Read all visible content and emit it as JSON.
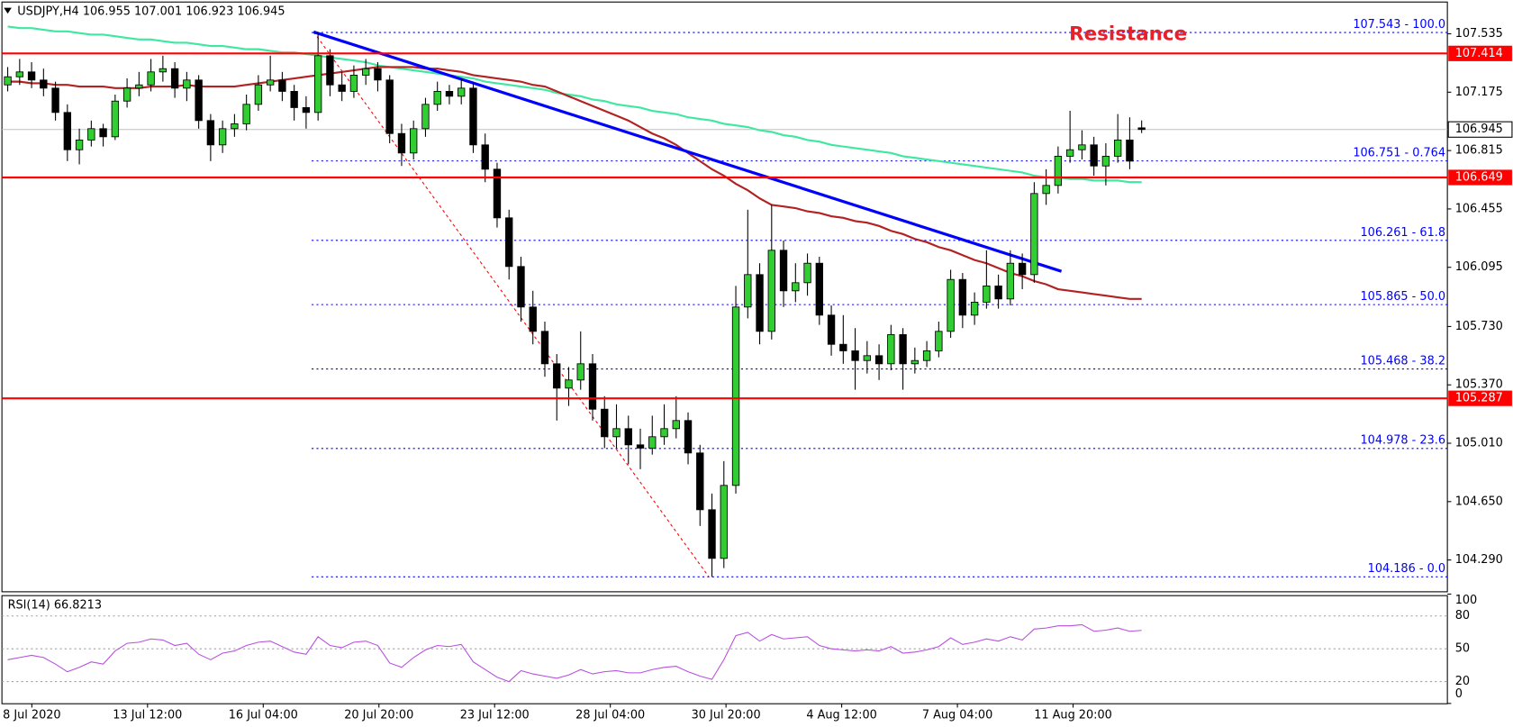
{
  "chart_data": {
    "type": "candlestick",
    "title": "USDJPY,H4  106.955 107.001 106.923 106.945",
    "annotation": "Resistance",
    "x_labels": [
      "8 Jul 2020",
      "13 Jul 12:00",
      "16 Jul 04:00",
      "20 Jul 20:00",
      "23 Jul 12:00",
      "28 Jul 04:00",
      "30 Jul 20:00",
      "4 Aug 12:00",
      "7 Aug 04:00",
      "11 Aug 20:00"
    ],
    "ylim": [
      104.094,
      107.731
    ],
    "yticks": [
      107.535,
      107.175,
      106.815,
      106.455,
      106.095,
      {
        "value": 105.73,
        "label": "105.730"
      },
      {
        "value": 105.37,
        "label": "105.370"
      },
      {
        "value": 105.01,
        "label": "105.010"
      },
      {
        "value": 104.65,
        "label": "104.650"
      },
      {
        "value": 104.29,
        "label": "104.290"
      }
    ],
    "up_color": "#32cd32",
    "down_color": "#000000",
    "candles": [
      [
        107.22,
        107.33,
        107.18,
        107.27
      ],
      [
        107.27,
        107.38,
        107.22,
        107.3
      ],
      [
        107.3,
        107.36,
        107.2,
        107.25
      ],
      [
        107.25,
        107.32,
        107.15,
        107.2
      ],
      [
        107.2,
        107.24,
        107.0,
        107.05
      ],
      [
        107.05,
        107.1,
        106.75,
        106.82
      ],
      [
        106.82,
        106.95,
        106.73,
        106.88
      ],
      [
        106.88,
        107.0,
        106.84,
        106.95
      ],
      [
        106.95,
        106.98,
        106.84,
        106.9
      ],
      [
        106.9,
        107.16,
        106.88,
        107.12
      ],
      [
        107.12,
        107.26,
        107.08,
        107.2
      ],
      [
        107.2,
        107.3,
        107.15,
        107.22
      ],
      [
        107.22,
        107.38,
        107.18,
        107.3
      ],
      [
        107.3,
        107.4,
        107.24,
        107.32
      ],
      [
        107.32,
        107.36,
        107.14,
        107.2
      ],
      [
        107.2,
        107.3,
        107.12,
        107.25
      ],
      [
        107.25,
        107.28,
        106.95,
        107.0
      ],
      [
        107.0,
        107.04,
        106.75,
        106.85
      ],
      [
        106.85,
        107.0,
        106.8,
        106.95
      ],
      [
        106.95,
        107.04,
        106.9,
        106.98
      ],
      [
        106.98,
        107.16,
        106.94,
        107.1
      ],
      [
        107.1,
        107.28,
        107.06,
        107.22
      ],
      [
        107.22,
        107.4,
        107.18,
        107.25
      ],
      [
        107.25,
        107.3,
        107.12,
        107.18
      ],
      [
        107.18,
        107.22,
        107.0,
        107.08
      ],
      [
        107.08,
        107.15,
        106.95,
        107.05
      ],
      [
        107.05,
        107.543,
        107.0,
        107.4
      ],
      [
        107.4,
        107.44,
        107.15,
        107.22
      ],
      [
        107.22,
        107.3,
        107.12,
        107.18
      ],
      [
        107.18,
        107.34,
        107.14,
        107.28
      ],
      [
        107.28,
        107.38,
        107.22,
        107.32
      ],
      [
        107.32,
        107.36,
        107.18,
        107.25
      ],
      [
        107.25,
        107.28,
        106.86,
        106.92
      ],
      [
        106.92,
        106.98,
        106.72,
        106.8
      ],
      [
        106.8,
        107.0,
        106.76,
        106.95
      ],
      [
        106.95,
        107.14,
        106.9,
        107.1
      ],
      [
        107.1,
        107.24,
        107.06,
        107.18
      ],
      [
        107.18,
        107.22,
        107.1,
        107.15
      ],
      [
        107.15,
        107.26,
        107.1,
        107.2
      ],
      [
        107.2,
        107.24,
        106.8,
        106.85
      ],
      [
        106.85,
        106.92,
        106.62,
        106.7
      ],
      [
        106.7,
        106.74,
        106.34,
        106.4
      ],
      [
        106.4,
        106.45,
        106.02,
        106.1
      ],
      [
        106.1,
        106.16,
        105.76,
        105.85
      ],
      [
        105.85,
        105.95,
        105.62,
        105.7
      ],
      [
        105.7,
        105.76,
        105.42,
        105.5
      ],
      [
        105.5,
        105.56,
        105.15,
        105.35
      ],
      [
        105.35,
        105.48,
        105.24,
        105.4
      ],
      [
        105.4,
        105.7,
        105.34,
        105.5
      ],
      [
        105.5,
        105.56,
        105.15,
        105.22
      ],
      [
        105.22,
        105.3,
        104.98,
        105.05
      ],
      [
        105.05,
        105.25,
        104.98,
        105.1
      ],
      [
        105.1,
        105.18,
        104.88,
        105.0
      ],
      [
        105.0,
        105.1,
        104.85,
        104.98
      ],
      [
        104.98,
        105.18,
        104.94,
        105.05
      ],
      [
        105.05,
        105.25,
        105.0,
        105.1
      ],
      [
        105.1,
        105.3,
        105.04,
        105.15
      ],
      [
        105.15,
        105.2,
        104.88,
        104.95
      ],
      [
        104.95,
        105.0,
        104.5,
        104.6
      ],
      [
        104.6,
        104.7,
        104.186,
        104.3
      ],
      [
        104.3,
        104.9,
        104.24,
        104.75
      ],
      [
        104.75,
        105.98,
        104.7,
        105.85
      ],
      [
        105.85,
        106.45,
        105.78,
        106.05
      ],
      [
        106.05,
        106.12,
        105.62,
        105.7
      ],
      [
        105.7,
        106.48,
        105.65,
        106.2
      ],
      [
        106.2,
        106.26,
        105.85,
        105.95
      ],
      [
        105.95,
        106.12,
        105.88,
        106.0
      ],
      [
        106.0,
        106.18,
        105.92,
        106.12
      ],
      [
        106.12,
        106.16,
        105.74,
        105.8
      ],
      [
        105.8,
        105.86,
        105.55,
        105.62
      ],
      [
        105.62,
        105.8,
        105.5,
        105.58
      ],
      [
        105.58,
        105.72,
        105.34,
        105.52
      ],
      [
        105.52,
        105.64,
        105.44,
        105.55
      ],
      [
        105.55,
        105.62,
        105.4,
        105.5
      ],
      [
        105.5,
        105.74,
        105.46,
        105.68
      ],
      [
        105.68,
        105.72,
        105.34,
        105.5
      ],
      [
        105.5,
        105.6,
        105.44,
        105.52
      ],
      [
        105.52,
        105.64,
        105.48,
        105.58
      ],
      [
        105.58,
        105.76,
        105.54,
        105.7
      ],
      [
        105.7,
        106.08,
        105.66,
        106.02
      ],
      [
        106.02,
        106.06,
        105.72,
        105.8
      ],
      [
        105.8,
        105.94,
        105.74,
        105.88
      ],
      [
        105.88,
        106.2,
        105.84,
        105.98
      ],
      [
        105.98,
        106.05,
        105.84,
        105.9
      ],
      [
        105.9,
        106.2,
        105.86,
        106.12
      ],
      [
        106.12,
        106.18,
        105.96,
        106.05
      ],
      [
        106.05,
        106.62,
        106.0,
        106.55
      ],
      [
        106.55,
        106.7,
        106.48,
        106.6
      ],
      [
        106.6,
        106.84,
        106.55,
        106.78
      ],
      [
        106.78,
        107.06,
        106.74,
        106.82
      ],
      [
        106.82,
        106.94,
        106.76,
        106.85
      ],
      [
        106.85,
        106.9,
        106.66,
        106.72
      ],
      [
        106.72,
        106.86,
        106.6,
        106.78
      ],
      [
        106.78,
        107.04,
        106.74,
        106.88
      ],
      [
        106.88,
        107.02,
        106.7,
        106.75
      ],
      [
        106.955,
        107.001,
        106.923,
        106.945
      ]
    ],
    "moving_averages": [
      {
        "color": "#3ee8a0",
        "values": [
          107.58,
          107.57,
          107.57,
          107.56,
          107.55,
          107.55,
          107.54,
          107.53,
          107.53,
          107.52,
          107.51,
          107.5,
          107.5,
          107.49,
          107.48,
          107.48,
          107.47,
          107.46,
          107.46,
          107.45,
          107.44,
          107.44,
          107.43,
          107.42,
          107.42,
          107.41,
          107.4,
          107.39,
          107.38,
          107.37,
          107.36,
          107.34,
          107.33,
          107.32,
          107.31,
          107.3,
          107.29,
          107.28,
          107.27,
          107.26,
          107.24,
          107.23,
          107.22,
          107.21,
          107.2,
          107.19,
          107.17,
          107.16,
          107.15,
          107.13,
          107.12,
          107.1,
          107.09,
          107.08,
          107.06,
          107.05,
          107.04,
          107.02,
          107.01,
          107.0,
          106.98,
          106.97,
          106.96,
          106.94,
          106.93,
          106.91,
          106.9,
          106.88,
          106.87,
          106.85,
          106.84,
          106.83,
          106.82,
          106.81,
          106.8,
          106.78,
          106.77,
          106.76,
          106.75,
          106.74,
          106.73,
          106.72,
          106.71,
          106.7,
          106.69,
          106.68,
          106.66,
          106.65,
          106.65,
          106.64,
          106.64,
          106.63,
          106.63,
          106.63,
          106.62,
          106.62
        ]
      },
      {
        "color": "#b22222",
        "values": [
          107.24,
          107.24,
          107.23,
          107.23,
          107.22,
          107.22,
          107.21,
          107.21,
          107.21,
          107.2,
          107.2,
          107.2,
          107.21,
          107.21,
          107.21,
          107.22,
          107.21,
          107.21,
          107.21,
          107.21,
          107.22,
          107.23,
          107.24,
          107.25,
          107.26,
          107.27,
          107.28,
          107.29,
          107.3,
          107.31,
          107.32,
          107.33,
          107.33,
          107.33,
          107.33,
          107.32,
          107.32,
          107.31,
          107.3,
          107.28,
          107.27,
          107.26,
          107.25,
          107.24,
          107.22,
          107.21,
          107.18,
          107.15,
          107.12,
          107.09,
          107.06,
          107.03,
          107.0,
          106.96,
          106.92,
          106.89,
          106.85,
          106.8,
          106.75,
          106.7,
          106.66,
          106.61,
          106.57,
          106.52,
          106.48,
          106.47,
          106.46,
          106.44,
          106.43,
          106.41,
          106.4,
          106.38,
          106.37,
          106.35,
          106.32,
          106.3,
          106.27,
          106.25,
          106.22,
          106.2,
          106.17,
          106.14,
          106.12,
          106.09,
          106.06,
          106.04,
          106.01,
          105.99,
          105.96,
          105.95,
          105.94,
          105.93,
          105.92,
          105.91,
          105.9,
          105.9
        ]
      }
    ],
    "levels": [
      107.414,
      106.649,
      105.287
    ],
    "level_color": "#ff0000",
    "current_price": 106.945,
    "fib_color": "#0000ff",
    "fib_levels": [
      {
        "value": 107.543,
        "label": "107.543 - 100.0"
      },
      {
        "value": 106.751,
        "label": "106.751 - 0.764"
      },
      {
        "value": 106.261,
        "label": "106.261 - 61.8"
      },
      {
        "value": 105.865,
        "label": "105.865 - 50.0"
      },
      {
        "value": 105.468,
        "label": "105.468 - 38.2"
      },
      {
        "value": 104.978,
        "label": "104.978 - 23.6"
      },
      {
        "value": 104.186,
        "label": "104.186 - 0.0"
      }
    ],
    "rsi": {
      "title": "RSI(14) 66.8213",
      "color": "#b84fe0",
      "ylim": [
        0,
        100
      ],
      "yticks": [
        100,
        80,
        50,
        20,
        0
      ],
      "values": [
        40,
        42,
        44,
        42,
        36,
        29,
        33,
        38,
        36,
        48,
        55,
        56,
        59,
        58,
        53,
        55,
        45,
        40,
        46,
        48,
        53,
        56,
        57,
        52,
        47,
        45,
        61,
        53,
        51,
        56,
        57,
        53,
        37,
        33,
        42,
        49,
        53,
        52,
        54,
        38,
        31,
        24,
        20,
        30,
        27,
        25,
        23,
        26,
        31,
        27,
        29,
        30,
        28,
        28,
        31,
        33,
        34,
        29,
        25,
        22,
        40,
        62,
        65,
        57,
        63,
        59,
        60,
        61,
        53,
        50,
        49,
        48,
        49,
        48,
        52,
        46,
        47,
        49,
        52,
        60,
        54,
        56,
        59,
        57,
        61,
        58,
        68,
        69,
        71,
        71,
        72,
        66,
        67,
        69,
        66,
        66.8213
      ]
    }
  }
}
